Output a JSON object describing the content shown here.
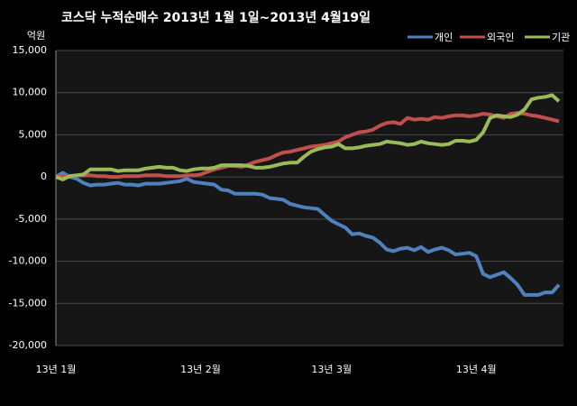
{
  "chart_data": {
    "type": "line",
    "title": "코스닥 누적순매수 2013년 1월 1일~2013년 4월19일",
    "y_label": "억원",
    "categories": [
      "13년 1월",
      null,
      null,
      null,
      null,
      null,
      null,
      null,
      null,
      null,
      null,
      null,
      null,
      null,
      null,
      null,
      null,
      null,
      null,
      null,
      null,
      "13년 2월",
      null,
      null,
      null,
      null,
      null,
      null,
      null,
      null,
      null,
      null,
      null,
      null,
      null,
      null,
      null,
      null,
      null,
      null,
      "13년 3월",
      null,
      null,
      null,
      null,
      null,
      null,
      null,
      null,
      null,
      null,
      null,
      null,
      null,
      null,
      null,
      null,
      null,
      null,
      null,
      null,
      "13년 4월",
      null,
      null,
      null,
      null,
      null,
      null,
      null,
      null,
      null,
      null,
      null,
      null
    ],
    "series": [
      {
        "name": "개인",
        "color": "#4f81bd",
        "values": [
          0,
          500,
          0,
          -200,
          -700,
          -1000,
          -900,
          -900,
          -800,
          -700,
          -900,
          -900,
          -1000,
          -800,
          -800,
          -800,
          -700,
          -600,
          -500,
          -200,
          -600,
          -700,
          -800,
          -900,
          -1500,
          -1600,
          -2000,
          -2000,
          -2000,
          -2000,
          -2100,
          -2500,
          -2600,
          -2700,
          -3200,
          -3400,
          -3600,
          -3700,
          -3800,
          -4500,
          -5200,
          -5600,
          -6000,
          -6800,
          -6700,
          -7000,
          -7200,
          -7800,
          -8600,
          -8800,
          -8500,
          -8400,
          -8700,
          -8300,
          -8900,
          -8600,
          -8400,
          -8700,
          -9200,
          -9100,
          -9000,
          -9400,
          -11500,
          -11900,
          -11600,
          -11300,
          -12000,
          -12800,
          -14000,
          -14000,
          -14000,
          -13700,
          -13700,
          -12800
        ]
      },
      {
        "name": "외국인",
        "color": "#c0504d",
        "values": [
          0,
          0,
          100,
          200,
          200,
          200,
          100,
          100,
          0,
          0,
          100,
          100,
          100,
          200,
          200,
          200,
          100,
          100,
          100,
          200,
          200,
          300,
          600,
          900,
          1100,
          1300,
          1300,
          1200,
          1500,
          1800,
          2000,
          2200,
          2600,
          2900,
          3000,
          3200,
          3400,
          3600,
          3700,
          3800,
          4000,
          4200,
          4700,
          5000,
          5300,
          5400,
          5600,
          6100,
          6400,
          6500,
          6300,
          7000,
          6800,
          6900,
          6800,
          7100,
          7000,
          7200,
          7300,
          7300,
          7200,
          7300,
          7500,
          7400,
          7200,
          7000,
          7500,
          7600,
          7500,
          7300,
          7200,
          7000,
          6800,
          6600
        ]
      },
      {
        "name": "기관",
        "color": "#9bbb59",
        "values": [
          0,
          -300,
          100,
          200,
          300,
          900,
          900,
          900,
          900,
          700,
          800,
          800,
          800,
          1000,
          1100,
          1200,
          1100,
          1100,
          800,
          700,
          900,
          1000,
          1000,
          1100,
          1400,
          1400,
          1400,
          1400,
          1300,
          1100,
          1100,
          1200,
          1400,
          1600,
          1700,
          1700,
          2400,
          3000,
          3300,
          3500,
          3600,
          3900,
          3400,
          3400,
          3500,
          3700,
          3800,
          3900,
          4200,
          4100,
          4000,
          3800,
          3900,
          4200,
          4000,
          3900,
          3800,
          3900,
          4300,
          4300,
          4200,
          4400,
          5300,
          7000,
          7300,
          7200,
          7100,
          7400,
          8000,
          9200,
          9400,
          9500,
          9700,
          9000
        ]
      }
    ],
    "ylim": [
      -20000,
      15000
    ],
    "yticks": [
      {
        "value": -20000,
        "label": "-20,000"
      },
      {
        "value": -15000,
        "label": "-15,000"
      },
      {
        "value": -10000,
        "label": "-10,000"
      },
      {
        "value": -5000,
        "label": "-5,000"
      },
      0,
      {
        "value": 5000,
        "label": "5,000"
      },
      {
        "value": 10000,
        "label": "10,000"
      },
      {
        "value": 15000,
        "label": "15,000"
      }
    ],
    "grid": true,
    "legend": "top-right"
  }
}
